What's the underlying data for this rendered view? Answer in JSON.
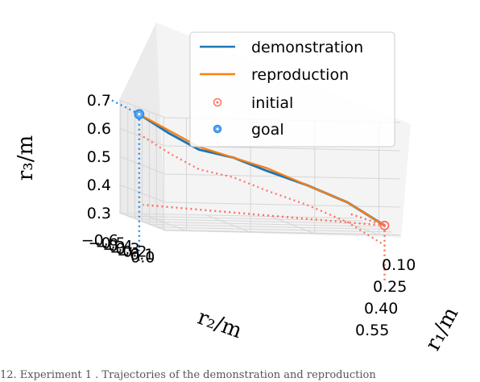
{
  "chart_data": {
    "type": "line3d",
    "title": "",
    "axes": {
      "x": {
        "label": "r₁/m",
        "ticks": [
          "0.10",
          "0.25",
          "0.40",
          "0.55"
        ],
        "range": [
          0.05,
          0.6
        ]
      },
      "y": {
        "label": "r₂/m",
        "ticks": [
          "−0.6",
          "−0.5",
          "−0.4",
          "−0.3",
          "−0.2",
          "−0.1",
          "0.0"
        ],
        "range": [
          -0.62,
          0.02
        ]
      },
      "z": {
        "label": "r₃/m",
        "ticks": [
          "0.3",
          "0.4",
          "0.5",
          "0.6",
          "0.7"
        ],
        "range": [
          0.3,
          0.7
        ]
      }
    },
    "grid": true,
    "legend": {
      "placement": "top-right",
      "entries": [
        {
          "name": "demonstration",
          "kind": "line",
          "color": "#1f77b4"
        },
        {
          "name": "reproduction",
          "kind": "line",
          "color": "#ff7f0e"
        },
        {
          "name": "initial",
          "kind": "marker",
          "color": "#ff6f5e"
        },
        {
          "name": "goal",
          "kind": "marker",
          "color": "#2f8fe8"
        }
      ]
    },
    "series": [
      {
        "name": "demonstration",
        "color": "#1f77b4",
        "points": [
          {
            "r1": 0.08,
            "r2": -0.52,
            "r3": 0.66
          },
          {
            "r1": 0.14,
            "r2": -0.46,
            "r3": 0.6
          },
          {
            "r1": 0.2,
            "r2": -0.4,
            "r3": 0.55
          },
          {
            "r1": 0.27,
            "r2": -0.34,
            "r3": 0.53
          },
          {
            "r1": 0.34,
            "r2": -0.28,
            "r3": 0.49
          },
          {
            "r1": 0.42,
            "r2": -0.21,
            "r3": 0.45
          },
          {
            "r1": 0.5,
            "r2": -0.12,
            "r3": 0.4
          },
          {
            "r1": 0.57,
            "r2": -0.02,
            "r3": 0.33
          }
        ]
      },
      {
        "name": "reproduction",
        "color": "#ff7f0e",
        "points": [
          {
            "r1": 0.08,
            "r2": -0.52,
            "r3": 0.66
          },
          {
            "r1": 0.14,
            "r2": -0.46,
            "r3": 0.61
          },
          {
            "r1": 0.2,
            "r2": -0.4,
            "r3": 0.56
          },
          {
            "r1": 0.27,
            "r2": -0.34,
            "r3": 0.53
          },
          {
            "r1": 0.34,
            "r2": -0.28,
            "r3": 0.5
          },
          {
            "r1": 0.42,
            "r2": -0.21,
            "r3": 0.45
          },
          {
            "r1": 0.5,
            "r2": -0.12,
            "r3": 0.4
          },
          {
            "r1": 0.57,
            "r2": -0.02,
            "r3": 0.33
          }
        ]
      }
    ],
    "markers": {
      "initial": {
        "r1": 0.57,
        "r2": -0.02,
        "r3": 0.33,
        "color": "#ff6f5e"
      },
      "goal": {
        "r1": 0.08,
        "r2": -0.52,
        "r3": 0.66,
        "color": "#2f8fe8"
      }
    },
    "projection_lines": "dotted lines drop from the initial and goal points to the axis planes"
  },
  "caption": "12.   Experiment 1 . Trajectories of the demonstration and reproduction"
}
